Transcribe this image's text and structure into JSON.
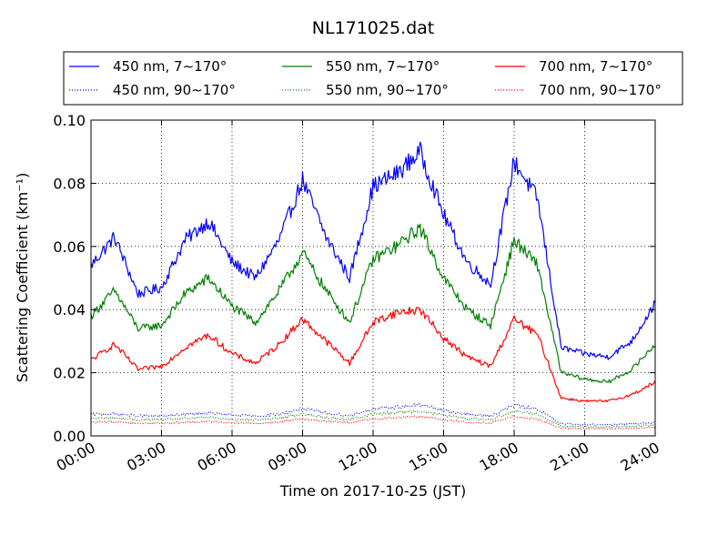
{
  "chart_data": {
    "type": "line",
    "title": "NL171025.dat",
    "xlabel": "Time on 2017-10-25 (JST)",
    "ylabel": "Scattering Coefficient (km⁻¹)",
    "x_ticks": [
      "00:00",
      "03:00",
      "06:00",
      "09:00",
      "12:00",
      "15:00",
      "18:00",
      "21:00",
      "24:00"
    ],
    "y_ticks": [
      "0.00",
      "0.02",
      "0.04",
      "0.06",
      "0.08",
      "0.10"
    ],
    "xlim": [
      "00:00",
      "24:00"
    ],
    "ylim": [
      0,
      0.1
    ],
    "grid": true,
    "legend_position": "top",
    "x": [
      "00:00",
      "01:00",
      "02:00",
      "03:00",
      "04:00",
      "05:00",
      "06:00",
      "07:00",
      "08:00",
      "09:00",
      "10:00",
      "11:00",
      "12:00",
      "13:00",
      "14:00",
      "15:00",
      "16:00",
      "17:00",
      "18:00",
      "19:00",
      "20:00",
      "21:00",
      "22:00",
      "23:00",
      "24:00"
    ],
    "series": [
      {
        "name": "450 nm, 7∼170°",
        "color": "#0000ff",
        "style": "solid",
        "values": [
          0.054,
          0.063,
          0.045,
          0.047,
          0.062,
          0.068,
          0.055,
          0.05,
          0.062,
          0.081,
          0.063,
          0.05,
          0.079,
          0.083,
          0.09,
          0.07,
          0.055,
          0.048,
          0.087,
          0.075,
          0.028,
          0.026,
          0.025,
          0.03,
          0.042
        ]
      },
      {
        "name": "550 nm, 7∼170°",
        "color": "#008000",
        "style": "solid",
        "values": [
          0.038,
          0.046,
          0.034,
          0.035,
          0.045,
          0.05,
          0.041,
          0.036,
          0.046,
          0.058,
          0.046,
          0.036,
          0.056,
          0.06,
          0.066,
          0.05,
          0.04,
          0.035,
          0.062,
          0.054,
          0.02,
          0.018,
          0.017,
          0.021,
          0.029
        ]
      },
      {
        "name": "700 nm, 7∼170°",
        "color": "#ff0000",
        "style": "solid",
        "values": [
          0.024,
          0.029,
          0.021,
          0.022,
          0.028,
          0.032,
          0.026,
          0.023,
          0.029,
          0.037,
          0.03,
          0.023,
          0.036,
          0.039,
          0.04,
          0.031,
          0.025,
          0.022,
          0.037,
          0.032,
          0.012,
          0.011,
          0.011,
          0.013,
          0.017
        ]
      },
      {
        "name": "450 nm, 90∼170°",
        "color": "#0000ff",
        "style": "dotted",
        "values": [
          0.0068,
          0.007,
          0.0063,
          0.0063,
          0.0068,
          0.0072,
          0.0066,
          0.0062,
          0.0069,
          0.0086,
          0.0072,
          0.0064,
          0.0085,
          0.0091,
          0.0098,
          0.0081,
          0.0068,
          0.0063,
          0.0097,
          0.0085,
          0.0038,
          0.0036,
          0.0035,
          0.0038,
          0.0042
        ]
      },
      {
        "name": "550 nm, 90∼170°",
        "color": "#008000",
        "style": "dotted",
        "values": [
          0.0055,
          0.0057,
          0.0051,
          0.0051,
          0.0055,
          0.0059,
          0.0053,
          0.005,
          0.0056,
          0.007,
          0.0058,
          0.0052,
          0.0069,
          0.0074,
          0.0079,
          0.0065,
          0.0055,
          0.0051,
          0.0079,
          0.0069,
          0.0031,
          0.0029,
          0.0028,
          0.0031,
          0.0034
        ]
      },
      {
        "name": "700 nm, 90∼170°",
        "color": "#ff0000",
        "style": "dotted",
        "values": [
          0.0043,
          0.0045,
          0.004,
          0.004,
          0.0043,
          0.0046,
          0.0042,
          0.0039,
          0.0044,
          0.0055,
          0.0046,
          0.0041,
          0.0054,
          0.0058,
          0.0062,
          0.0051,
          0.0043,
          0.004,
          0.0062,
          0.0054,
          0.0024,
          0.0023,
          0.0022,
          0.0024,
          0.0027
        ]
      }
    ]
  }
}
